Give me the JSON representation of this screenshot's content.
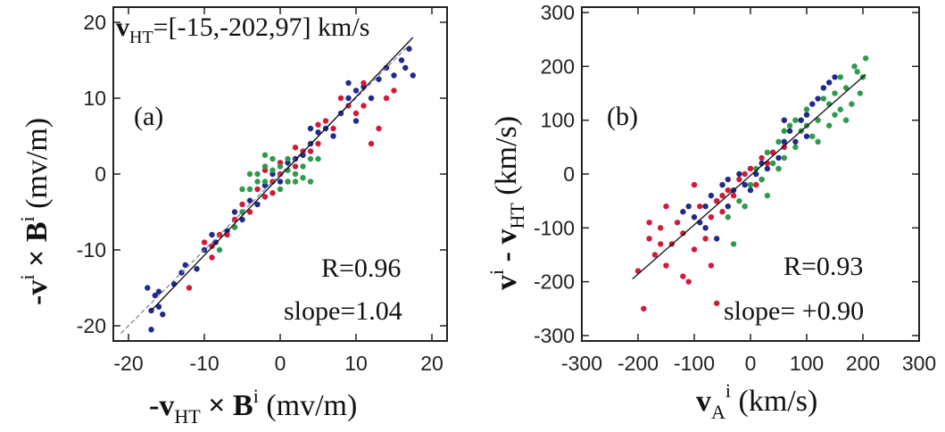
{
  "chart_data": [
    {
      "type": "scatter",
      "panel_label": "(a)",
      "annotation_vht": {
        "symbol": "v",
        "subscript": "HT",
        "text": "=[-15,-202,97] km/s"
      },
      "stats": {
        "r": "R=0.96",
        "slope": "slope=1.04"
      },
      "xlabel": {
        "prefix": "-v",
        "sub": "HT",
        "mid": " × B",
        "sup": "i",
        "unit": " (mv/m)"
      },
      "ylabel": {
        "prefix": "-v",
        "sup1": "i",
        "mid": " × B",
        "sup2": "i",
        "unit": " (mv/m)"
      },
      "xlim": [
        -22,
        22
      ],
      "ylim": [
        -22,
        22
      ],
      "xticks": [
        -20,
        -10,
        0,
        10,
        20
      ],
      "yticks": [
        -20,
        -10,
        0,
        10,
        20
      ],
      "xtick_labels": [
        "-20",
        "-10",
        "0",
        "10",
        "20"
      ],
      "ytick_labels": [
        "-20",
        "-10",
        "0",
        "10",
        "20"
      ],
      "fit_line": {
        "x": [
          -17,
          17.5
        ],
        "y": [
          -18,
          18
        ]
      },
      "reference_line": {
        "x": [
          -21,
          17
        ],
        "y": [
          -21,
          17
        ]
      },
      "series": [
        {
          "color": "#1f2a8c",
          "points": [
            [
              -17,
              -18
            ],
            [
              -16.5,
              -16
            ],
            [
              -16,
              -17.5
            ],
            [
              -17.5,
              -15
            ],
            [
              -15.5,
              -18.5
            ],
            [
              -17,
              -20.5
            ],
            [
              -16,
              -15.5
            ],
            [
              -13,
              -13
            ],
            [
              -12.5,
              -12
            ],
            [
              -11,
              -12.5
            ],
            [
              -9,
              -8
            ],
            [
              -8.5,
              -9
            ],
            [
              -6,
              -5
            ],
            [
              -5,
              -6
            ],
            [
              -4,
              -3.5
            ],
            [
              -2,
              -1.5
            ],
            [
              -1,
              0
            ],
            [
              1,
              1.5
            ],
            [
              2,
              2
            ],
            [
              3,
              2.5
            ],
            [
              4,
              4
            ],
            [
              5,
              5.5
            ],
            [
              6,
              6
            ],
            [
              7,
              5
            ],
            [
              8,
              8
            ],
            [
              9,
              10
            ],
            [
              10,
              11
            ],
            [
              11,
              11.5
            ],
            [
              12,
              10
            ],
            [
              13,
              12.5
            ],
            [
              14,
              14
            ],
            [
              15,
              13
            ],
            [
              16,
              15
            ],
            [
              16.5,
              14
            ],
            [
              17,
              16.5
            ],
            [
              17.5,
              13
            ],
            [
              9,
              12
            ],
            [
              10,
              7
            ],
            [
              4,
              6
            ],
            [
              -3,
              -4
            ],
            [
              0,
              -1
            ],
            [
              -7,
              -7.5
            ],
            [
              -10,
              -10
            ],
            [
              -14,
              -14.5
            ]
          ]
        },
        {
          "color": "#d11a3a",
          "points": [
            [
              -12,
              -15
            ],
            [
              -10,
              -9
            ],
            [
              -9,
              -9.5
            ],
            [
              -8,
              -8
            ],
            [
              -7,
              -8
            ],
            [
              -6,
              -6
            ],
            [
              -5,
              -4
            ],
            [
              -4,
              -5
            ],
            [
              -3,
              -2
            ],
            [
              -2,
              -3
            ],
            [
              -1,
              -1
            ],
            [
              0,
              0
            ],
            [
              1,
              -1
            ],
            [
              2,
              1
            ],
            [
              3,
              3
            ],
            [
              4,
              3
            ],
            [
              5,
              4
            ],
            [
              6,
              7
            ],
            [
              7,
              6
            ],
            [
              8,
              10
            ],
            [
              9,
              9
            ],
            [
              10,
              8
            ],
            [
              11,
              9
            ],
            [
              12,
              4
            ],
            [
              13,
              6
            ],
            [
              14,
              10
            ],
            [
              15,
              11
            ],
            [
              11,
              12
            ],
            [
              -9,
              -11
            ],
            [
              -2,
              0.5
            ],
            [
              2,
              3.5
            ],
            [
              -6,
              -7
            ],
            [
              5,
              6.5
            ],
            [
              0,
              1.5
            ],
            [
              -1,
              -2.5
            ]
          ]
        },
        {
          "color": "#2e9a4a",
          "points": [
            [
              -8,
              -10
            ],
            [
              -6,
              -7
            ],
            [
              -5,
              -5
            ],
            [
              -4,
              -2
            ],
            [
              -3,
              -1
            ],
            [
              -3,
              0
            ],
            [
              -2,
              1
            ],
            [
              -2,
              -1
            ],
            [
              -1,
              0.5
            ],
            [
              -1,
              2
            ],
            [
              0,
              1
            ],
            [
              0,
              -2
            ],
            [
              1,
              -1
            ],
            [
              1,
              2
            ],
            [
              2,
              0
            ],
            [
              2,
              -1
            ],
            [
              3,
              -0.5
            ],
            [
              3,
              1
            ],
            [
              4,
              -1
            ],
            [
              4,
              2
            ],
            [
              5,
              2
            ],
            [
              -4,
              0
            ],
            [
              -5,
              -2
            ],
            [
              -2,
              2.5
            ],
            [
              1,
              0.5
            ]
          ]
        }
      ]
    },
    {
      "type": "scatter",
      "panel_label": "(b)",
      "stats": {
        "r": "R=0.93",
        "slope": "slope= +0.90"
      },
      "xlabel": {
        "prefix": "v",
        "sub": "A",
        "sup": "i",
        "unit": " (km/s)"
      },
      "ylabel": {
        "prefix": "v",
        "sup": "i",
        "mid": " - v",
        "sub": "HT",
        "unit": " (km/s)"
      },
      "xlim": [
        -300,
        300
      ],
      "ylim": [
        -310,
        310
      ],
      "xticks": [
        -300,
        -200,
        -100,
        0,
        100,
        200,
        300
      ],
      "yticks": [
        -300,
        -200,
        -100,
        0,
        100,
        200,
        300
      ],
      "xtick_labels": [
        "-300",
        "-200",
        "-100",
        "0",
        "100",
        "200",
        "300"
      ],
      "ytick_labels": [
        "-300",
        "-200",
        "-100",
        "0",
        "100",
        "200",
        "300"
      ],
      "fit_line": {
        "x": [
          -210,
          205
        ],
        "y": [
          -195,
          185
        ]
      },
      "series": [
        {
          "color": "#1f2a8c",
          "points": [
            [
              -120,
              -70
            ],
            [
              -100,
              -80
            ],
            [
              -90,
              -90
            ],
            [
              -80,
              -60
            ],
            [
              -70,
              -40
            ],
            [
              -60,
              -50
            ],
            [
              -50,
              -20
            ],
            [
              -40,
              -10
            ],
            [
              -30,
              -30
            ],
            [
              -20,
              0
            ],
            [
              -10,
              -20
            ],
            [
              0,
              10
            ],
            [
              10,
              0
            ],
            [
              20,
              20
            ],
            [
              30,
              10
            ],
            [
              40,
              40
            ],
            [
              50,
              30
            ],
            [
              60,
              60
            ],
            [
              70,
              80
            ],
            [
              80,
              60
            ],
            [
              90,
              100
            ],
            [
              100,
              110
            ],
            [
              110,
              130
            ],
            [
              120,
              140
            ],
            [
              130,
              160
            ],
            [
              140,
              170
            ],
            [
              150,
              180
            ],
            [
              -60,
              -120
            ],
            [
              -80,
              -100
            ],
            [
              -40,
              -60
            ],
            [
              0,
              -30
            ],
            [
              20,
              -10
            ],
            [
              60,
              100
            ],
            [
              100,
              70
            ],
            [
              -110,
              -60
            ]
          ]
        },
        {
          "color": "#d11a3a",
          "points": [
            [
              -200,
              -180
            ],
            [
              -190,
              -250
            ],
            [
              -180,
              -120
            ],
            [
              -170,
              -150
            ],
            [
              -160,
              -100
            ],
            [
              -150,
              -170
            ],
            [
              -140,
              -130
            ],
            [
              -130,
              -90
            ],
            [
              -120,
              -110
            ],
            [
              -110,
              -200
            ],
            [
              -100,
              -140
            ],
            [
              -90,
              -60
            ],
            [
              -80,
              -120
            ],
            [
              -70,
              -80
            ],
            [
              -60,
              -50
            ],
            [
              -50,
              -70
            ],
            [
              -40,
              -30
            ],
            [
              -30,
              -40
            ],
            [
              -20,
              -10
            ],
            [
              -10,
              0
            ],
            [
              0,
              10
            ],
            [
              10,
              -20
            ],
            [
              20,
              30
            ],
            [
              30,
              20
            ],
            [
              40,
              40
            ],
            [
              50,
              10
            ],
            [
              60,
              50
            ],
            [
              -180,
              -90
            ],
            [
              -150,
              -60
            ],
            [
              -100,
              -20
            ],
            [
              -60,
              -240
            ],
            [
              -70,
              -170
            ],
            [
              -120,
              -190
            ],
            [
              -50,
              -40
            ],
            [
              -160,
              -130
            ]
          ]
        },
        {
          "color": "#2e9a4a",
          "points": [
            [
              -40,
              -80
            ],
            [
              -20,
              -50
            ],
            [
              0,
              -20
            ],
            [
              10,
              10
            ],
            [
              20,
              -10
            ],
            [
              30,
              40
            ],
            [
              40,
              20
            ],
            [
              50,
              60
            ],
            [
              60,
              30
            ],
            [
              70,
              90
            ],
            [
              80,
              50
            ],
            [
              90,
              80
            ],
            [
              100,
              120
            ],
            [
              110,
              70
            ],
            [
              120,
              100
            ],
            [
              130,
              140
            ],
            [
              140,
              90
            ],
            [
              150,
              150
            ],
            [
              160,
              120
            ],
            [
              170,
              160
            ],
            [
              180,
              130
            ],
            [
              190,
              190
            ],
            [
              200,
              180
            ],
            [
              205,
              215
            ],
            [
              185,
              200
            ],
            [
              160,
              180
            ],
            [
              140,
              130
            ],
            [
              120,
              60
            ],
            [
              100,
              90
            ],
            [
              80,
              100
            ],
            [
              60,
              80
            ],
            [
              -30,
              -130
            ],
            [
              -10,
              -60
            ],
            [
              30,
              -40
            ],
            [
              50,
              10
            ],
            [
              170,
              100
            ],
            [
              195,
              150
            ],
            [
              150,
              110
            ]
          ]
        }
      ]
    }
  ]
}
